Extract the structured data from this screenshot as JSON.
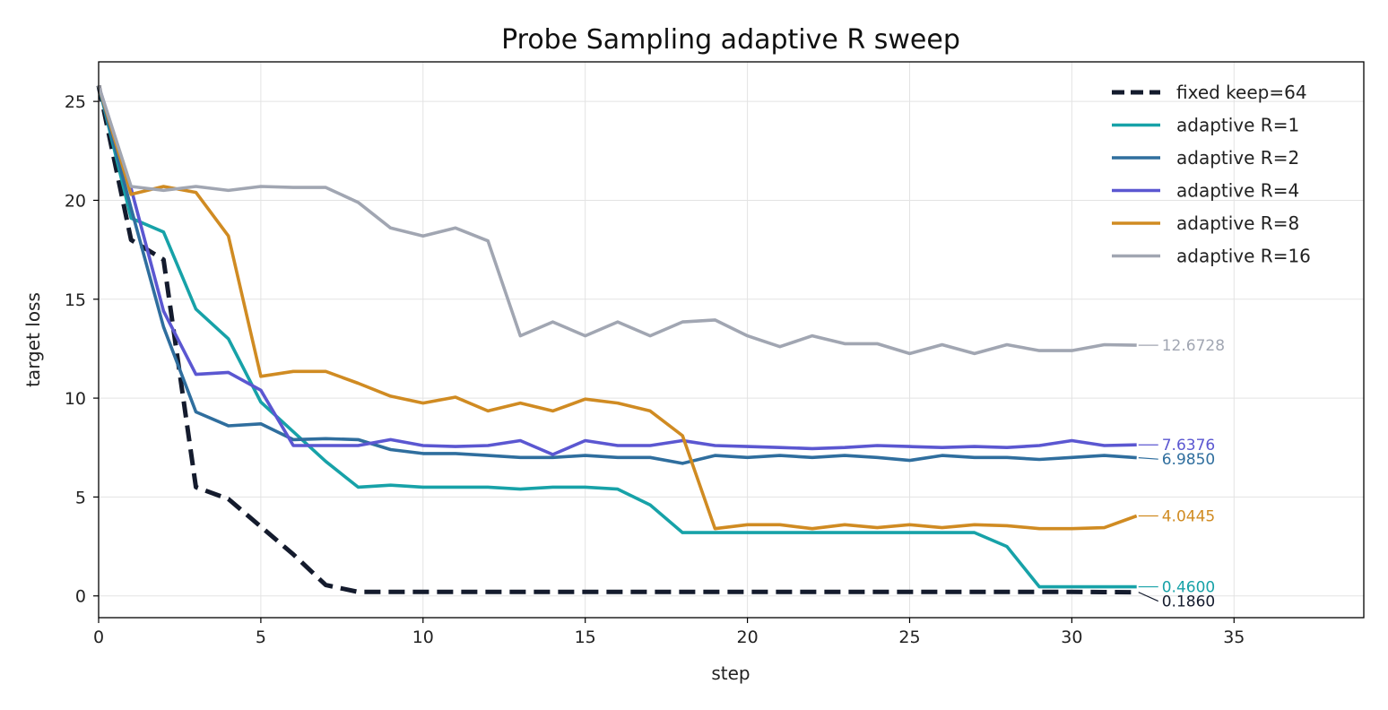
{
  "chart_data": {
    "type": "line",
    "title": "Probe Sampling adaptive R sweep",
    "xlabel": "step",
    "ylabel": "target loss",
    "xlim": [
      0,
      39
    ],
    "ylim": [
      -1.1,
      27
    ],
    "xticks": [
      0,
      5,
      10,
      15,
      20,
      25,
      30,
      35
    ],
    "yticks": [
      0,
      5,
      10,
      15,
      20,
      25
    ],
    "grid": true,
    "legend_position": "top-right",
    "series": [
      {
        "name": "fixed keep=64",
        "color": "#141b2d",
        "dashed": true,
        "end_label": "0.1860",
        "values": [
          25.8,
          18.0,
          17.0,
          5.5,
          4.9,
          3.5,
          2.1,
          0.55,
          0.2,
          0.2,
          0.2,
          0.2,
          0.2,
          0.2,
          0.2,
          0.2,
          0.2,
          0.2,
          0.2,
          0.2,
          0.2,
          0.2,
          0.2,
          0.2,
          0.2,
          0.2,
          0.2,
          0.2,
          0.2,
          0.2,
          0.2,
          0.19,
          0.186
        ]
      },
      {
        "name": "adaptive R=1",
        "color": "#17a2a8",
        "dashed": false,
        "end_label": "0.4600",
        "values": [
          25.8,
          19.1,
          18.4,
          14.5,
          13.0,
          9.8,
          8.3,
          6.8,
          5.5,
          5.6,
          5.5,
          5.5,
          5.5,
          5.4,
          5.5,
          5.5,
          5.4,
          4.6,
          3.2,
          3.2,
          3.2,
          3.2,
          3.2,
          3.2,
          3.2,
          3.2,
          3.2,
          3.2,
          2.5,
          0.46,
          0.46,
          0.46,
          0.46
        ]
      },
      {
        "name": "adaptive R=2",
        "color": "#2f6e9e",
        "dashed": false,
        "end_label": "6.9850",
        "values": [
          25.8,
          19.6,
          13.6,
          9.3,
          8.6,
          8.7,
          7.9,
          7.95,
          7.9,
          7.4,
          7.2,
          7.2,
          7.1,
          7.0,
          7.0,
          7.1,
          7.0,
          7.0,
          6.7,
          7.1,
          7.0,
          7.1,
          7.0,
          7.1,
          7.0,
          6.85,
          7.1,
          7.0,
          7.0,
          6.9,
          7.0,
          7.1,
          6.985
        ]
      },
      {
        "name": "adaptive R=4",
        "color": "#5b57d1",
        "dashed": false,
        "end_label": "7.6376",
        "values": [
          25.8,
          20.6,
          14.4,
          11.2,
          11.3,
          10.4,
          7.6,
          7.6,
          7.6,
          7.9,
          7.6,
          7.55,
          7.6,
          7.85,
          7.15,
          7.85,
          7.6,
          7.6,
          7.85,
          7.6,
          7.55,
          7.5,
          7.45,
          7.5,
          7.6,
          7.55,
          7.5,
          7.55,
          7.5,
          7.6,
          7.85,
          7.6,
          7.6376
        ]
      },
      {
        "name": "adaptive R=8",
        "color": "#d08b22",
        "dashed": false,
        "end_label": "4.0445",
        "values": [
          25.8,
          20.3,
          20.7,
          20.4,
          18.2,
          11.1,
          11.35,
          11.35,
          10.75,
          10.1,
          9.75,
          10.05,
          9.35,
          9.75,
          9.35,
          9.95,
          9.75,
          9.35,
          8.1,
          3.4,
          3.6,
          3.6,
          3.4,
          3.6,
          3.45,
          3.6,
          3.45,
          3.6,
          3.55,
          3.4,
          3.4,
          3.45,
          4.0445
        ]
      },
      {
        "name": "adaptive R=16",
        "color": "#a1a6b2",
        "dashed": false,
        "end_label": "12.6728",
        "values": [
          25.8,
          20.7,
          20.5,
          20.7,
          20.5,
          20.7,
          20.65,
          20.65,
          19.9,
          18.6,
          18.2,
          18.6,
          17.95,
          13.15,
          13.85,
          13.15,
          13.85,
          13.15,
          13.85,
          13.95,
          13.15,
          12.6,
          13.15,
          12.75,
          12.75,
          12.25,
          12.7,
          12.25,
          12.7,
          12.4,
          12.4,
          12.7,
          12.6728
        ]
      }
    ]
  }
}
